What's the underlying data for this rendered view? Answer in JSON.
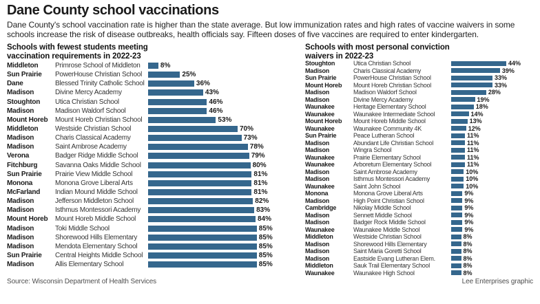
{
  "header": {
    "title": "Dane County school vaccinations",
    "subtitle": "Dane County's school vaccination rate is higher than the state average. But low immunization rates and high rates of vaccine waivers in some schools increase the risk of disease outbreaks, health officials say. Fifteen doses of five vaccines are required to enter kindergarten."
  },
  "footer": {
    "source": "Source: Wisconsin Department of Health Services",
    "credit": "Lee Enterprises graphic"
  },
  "colors": {
    "bar": "#35678D",
    "title_text": "#1a1a1a",
    "body_text": "#333333",
    "muted_text": "#4d4d4d"
  },
  "chart_data": [
    {
      "type": "bar",
      "orientation": "horizontal",
      "title": "Schools with fewest students meeting vaccination requirements in 2022-23",
      "unit": "%",
      "xlim": [
        0,
        100
      ],
      "value_labels": true,
      "grid": false,
      "rows": [
        {
          "city": "Middleton",
          "school": "Primrose School of Middleton",
          "value": 8
        },
        {
          "city": "Sun Prairie",
          "school": "PowerHouse Christian School",
          "value": 25
        },
        {
          "city": "Dane",
          "school": "Blessed Trinity Catholic School",
          "value": 36
        },
        {
          "city": "Madison",
          "school": "Divine Mercy Academy",
          "value": 43
        },
        {
          "city": "Stoughton",
          "school": "Utica Christian School",
          "value": 46
        },
        {
          "city": "Madison",
          "school": "Madison Waldorf School",
          "value": 46
        },
        {
          "city": "Mount Horeb",
          "school": "Mount Horeb Christian School",
          "value": 53
        },
        {
          "city": "Middleton",
          "school": "Westside Christian School",
          "value": 70
        },
        {
          "city": "Madison",
          "school": "Charis Classical Academy",
          "value": 73
        },
        {
          "city": "Madison",
          "school": "Saint Ambrose Academy",
          "value": 78
        },
        {
          "city": "Verona",
          "school": "Badger Ridge Middle School",
          "value": 79
        },
        {
          "city": "Fitchburg",
          "school": "Savanna Oaks Middle School",
          "value": 80
        },
        {
          "city": "Sun Prairie",
          "school": "Prairie View Middle School",
          "value": 81
        },
        {
          "city": "Monona",
          "school": "Monona Grove Liberal Arts",
          "value": 81
        },
        {
          "city": "McFarland",
          "school": "Indian Mound Middle School",
          "value": 81
        },
        {
          "city": "Madison",
          "school": "Jefferson Middleton School",
          "value": 82
        },
        {
          "city": "Madison",
          "school": "Isthmus Montessori Academy",
          "value": 83
        },
        {
          "city": "Mount Horeb",
          "school": "Mount Horeb Middle School",
          "value": 84
        },
        {
          "city": "Madison",
          "school": "Toki Middle School",
          "value": 85
        },
        {
          "city": "Madison",
          "school": "Shorewood Hills Elementary",
          "value": 85
        },
        {
          "city": "Madison",
          "school": "Mendota Elementary School",
          "value": 85
        },
        {
          "city": "Sun Prairie",
          "school": "Central Heights Middle School",
          "value": 85
        },
        {
          "city": "Madison",
          "school": "Allis Elementary School",
          "value": 85
        }
      ]
    },
    {
      "type": "bar",
      "orientation": "horizontal",
      "title": "Schools with most personal conviction waivers in 2022-23",
      "unit": "%",
      "xlim": [
        0,
        50
      ],
      "value_labels": true,
      "grid": false,
      "rows": [
        {
          "city": "Stoughton",
          "school": "Utica Christian School",
          "value": 44
        },
        {
          "city": "Madison",
          "school": "Charis Classical Academy",
          "value": 39
        },
        {
          "city": "Sun Prairie",
          "school": "PowerHouse Christian School",
          "value": 33
        },
        {
          "city": "Mount Horeb",
          "school": "Mount Horeb Christian School",
          "value": 33
        },
        {
          "city": "Madison",
          "school": "Madison Waldorf School",
          "value": 28
        },
        {
          "city": "Madison",
          "school": "Divine Mercy Academy",
          "value": 19
        },
        {
          "city": "Waunakee",
          "school": "Heritage Elementary School",
          "value": 18
        },
        {
          "city": "Waunakee",
          "school": "Waunakee Intermediate School",
          "value": 14
        },
        {
          "city": "Mount Horeb",
          "school": "Mount Horeb Middle School",
          "value": 13
        },
        {
          "city": "Waunakee",
          "school": "Waunakee Community 4K",
          "value": 12
        },
        {
          "city": "Sun Prairie",
          "school": "Peace Lutheran School",
          "value": 11
        },
        {
          "city": "Madison",
          "school": "Abundant Life Christian School",
          "value": 11
        },
        {
          "city": "Madison",
          "school": "Wingra School",
          "value": 11
        },
        {
          "city": "Waunakee",
          "school": "Prairie Elementary School",
          "value": 11
        },
        {
          "city": "Waunakee",
          "school": "Arboretum Elementary School",
          "value": 11
        },
        {
          "city": "Madison",
          "school": "Saint Ambrose Academy",
          "value": 10
        },
        {
          "city": "Madison",
          "school": "Isthmus Montessori Academy",
          "value": 10
        },
        {
          "city": "Waunakee",
          "school": "Saint John School",
          "value": 10
        },
        {
          "city": "Monona",
          "school": "Monona Grove Liberal Arts",
          "value": 9
        },
        {
          "city": "Madison",
          "school": "High Point Christian School",
          "value": 9
        },
        {
          "city": "Cambridge",
          "school": "Nikolay Middle School",
          "value": 9
        },
        {
          "city": "Madison",
          "school": "Sennett Middle School",
          "value": 9
        },
        {
          "city": "Madison",
          "school": "Badger Rock Middle School",
          "value": 9
        },
        {
          "city": "Waunakee",
          "school": "Waunakee Middle School",
          "value": 9
        },
        {
          "city": "Middleton",
          "school": "Westside Christian School",
          "value": 8
        },
        {
          "city": "Madison",
          "school": "Shorewood Hills Elementary",
          "value": 8
        },
        {
          "city": "Madison",
          "school": "Saint Maria Goretti School",
          "value": 8
        },
        {
          "city": "Madison",
          "school": "Eastside Evang Lutheran Elem.",
          "value": 8
        },
        {
          "city": "Middleton",
          "school": "Sauk Trail Elementary School",
          "value": 8
        },
        {
          "city": "Waunakee",
          "school": "Waunakee High School",
          "value": 8
        }
      ]
    }
  ]
}
